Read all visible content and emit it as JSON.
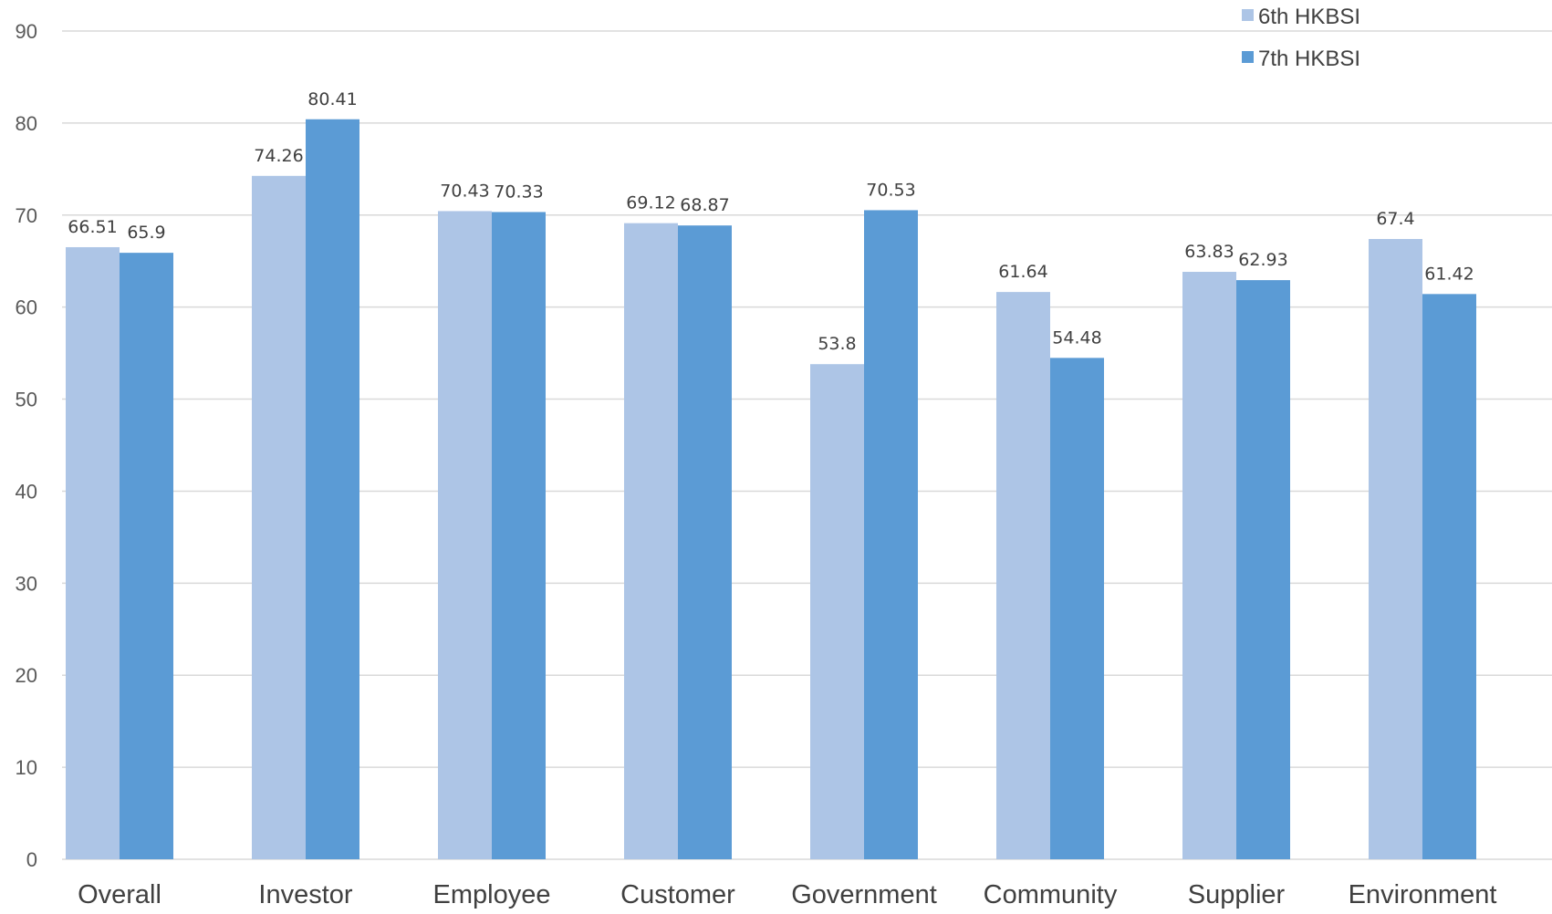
{
  "chart_data": {
    "type": "bar",
    "categories": [
      "Overall",
      "Investor",
      "Employee",
      "Customer",
      "Government",
      "Community",
      "Supplier",
      "Environment"
    ],
    "series": [
      {
        "name": "6th HKBSI",
        "color": "#adc5e6",
        "values": [
          66.51,
          74.26,
          70.43,
          69.12,
          53.8,
          61.64,
          63.83,
          67.4
        ]
      },
      {
        "name": "7th HKBSI",
        "color": "#5b9bd5",
        "values": [
          65.9,
          80.41,
          70.33,
          68.87,
          70.53,
          54.48,
          62.93,
          61.42
        ]
      }
    ],
    "data_labels": [
      [
        "66.51",
        "74.26",
        "70.43",
        "69.12",
        "53.8",
        "61.64",
        "63.83",
        "67.4"
      ],
      [
        "65.9",
        "80.41",
        "70.33",
        "68.87",
        "70.53",
        "54.48",
        "62.93",
        "61.42"
      ]
    ],
    "y_ticks": [
      0,
      10,
      20,
      30,
      40,
      50,
      60,
      70,
      80,
      90
    ],
    "ylim": [
      0,
      90
    ],
    "grid": true,
    "legend_position": "top-right",
    "title": "",
    "xlabel": "",
    "ylabel": "",
    "gridline_color": "#d9d9d9"
  }
}
